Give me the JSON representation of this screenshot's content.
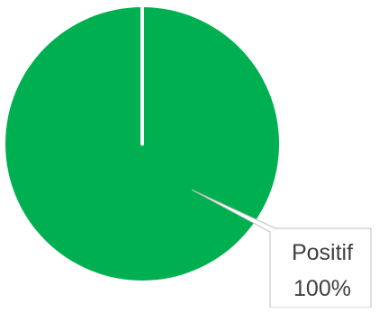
{
  "chart_data": {
    "type": "pie",
    "title": "",
    "slices": [
      {
        "label": "Positif",
        "value": 100,
        "percent_label": "100%",
        "color": "#00b050"
      }
    ],
    "data_label_style": "callout",
    "legend": "none"
  },
  "colors": {
    "slice_fill": "#00b050",
    "callout_border": "#bfbfbf",
    "callout_fill": "#ffffff",
    "label_text": "#404040",
    "background": "#ffffff"
  }
}
